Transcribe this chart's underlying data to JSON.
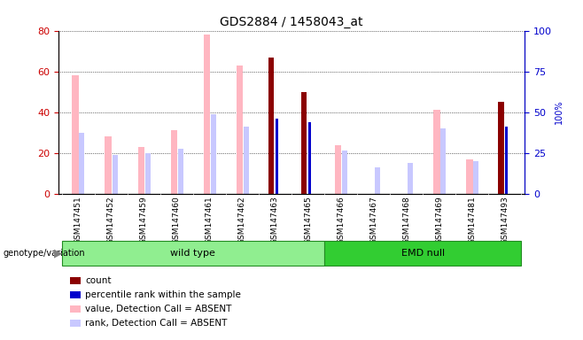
{
  "title": "GDS2884 / 1458043_at",
  "samples": [
    "GSM147451",
    "GSM147452",
    "GSM147459",
    "GSM147460",
    "GSM147461",
    "GSM147462",
    "GSM147463",
    "GSM147465",
    "GSM147466",
    "GSM147467",
    "GSM147468",
    "GSM147469",
    "GSM147481",
    "GSM147493"
  ],
  "groups": [
    "wild type",
    "wild type",
    "wild type",
    "wild type",
    "wild type",
    "wild type",
    "wild type",
    "wild type",
    "EMD null",
    "EMD null",
    "EMD null",
    "EMD null",
    "EMD null",
    "EMD null"
  ],
  "count": [
    0,
    0,
    0,
    0,
    0,
    0,
    67,
    50,
    0,
    0,
    0,
    0,
    0,
    45
  ],
  "percentile": [
    0,
    0,
    0,
    0,
    0,
    0,
    37,
    35,
    0,
    0,
    0,
    0,
    0,
    33
  ],
  "value_absent": [
    58,
    28,
    23,
    31,
    78,
    63,
    0,
    0,
    24,
    0,
    0,
    41,
    17,
    0
  ],
  "rank_absent": [
    30,
    19,
    20,
    22,
    39,
    33,
    0,
    0,
    21,
    13,
    15,
    32,
    16,
    0
  ],
  "ylim_left": [
    0,
    80
  ],
  "ylim_right": [
    0,
    100
  ],
  "yticks_left": [
    0,
    20,
    40,
    60,
    80
  ],
  "yticks_right": [
    0,
    25,
    50,
    75,
    100
  ],
  "color_count": "#8B0000",
  "color_percentile": "#0000CC",
  "color_value_absent": "#FFB6C1",
  "color_rank_absent": "#C8C8FF",
  "color_left_axis": "#CC0000",
  "color_right_axis": "#0000CC",
  "wt_color": "#90EE90",
  "emd_color": "#32CD32",
  "background_color": "#FFFFFF"
}
